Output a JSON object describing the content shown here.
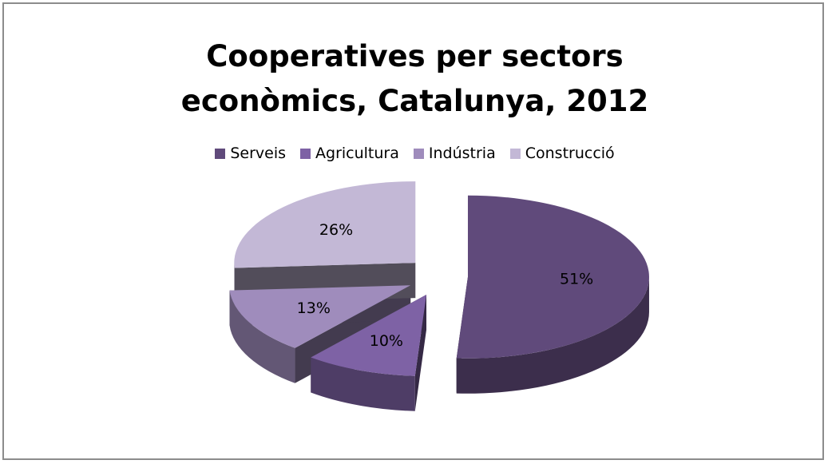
{
  "chart_data": {
    "type": "pie",
    "title": "Cooperatives per sectors econòmics, Catalunya, 2012",
    "title_lines": [
      "Cooperatives per sectors",
      "econòmics, Catalunya, 2012"
    ],
    "legend_position": "top",
    "style": "3d-exploded",
    "slices": [
      {
        "name": "Serveis",
        "value": 51,
        "label": "51%",
        "color": "#604a7b"
      },
      {
        "name": "Agricultura",
        "value": 10,
        "label": "10%",
        "color": "#7e62a5"
      },
      {
        "name": "Indústria",
        "value": 13,
        "label": "13%",
        "color": "#9f8cbc"
      },
      {
        "name": "Construcció",
        "value": 26,
        "label": "26%",
        "color": "#c3b8d6"
      }
    ]
  }
}
